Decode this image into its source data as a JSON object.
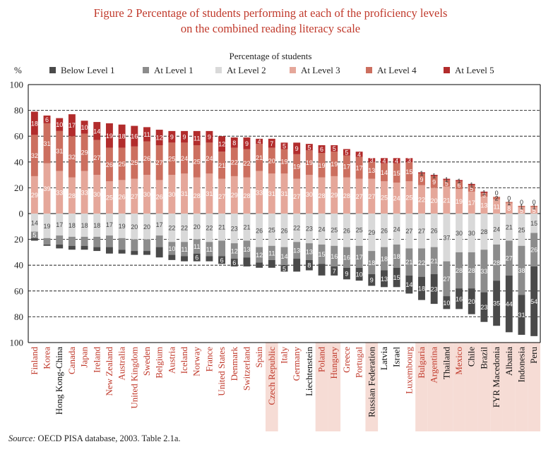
{
  "figure": {
    "title_line1": "Figure 2 Percentage of students performing at each of the proficiency levels",
    "title_line2": "on the combined reading literacy scale",
    "subtitle": "Percentage of students",
    "unit": "%",
    "source_label": "Source:",
    "source_text": "OECD PISA database, 2003. Table 2.1a."
  },
  "colors": {
    "Below Level 1": "#4a4a4a",
    "At Level 1": "#8c8c8c",
    "At Level 2": "#d9d9d9",
    "At Level 3": "#e5a79a",
    "At Level 4": "#cc6f5f",
    "At Level 5": "#b22c2c",
    "highlight_band": "#f6dcd5",
    "country_red": "#c0392b"
  },
  "chart_data": {
    "type": "bar",
    "stacked": "diverging",
    "ylim": [
      -100,
      100
    ],
    "yticks": [
      100,
      80,
      60,
      40,
      20,
      0,
      20,
      40,
      60,
      80,
      100
    ],
    "grid": true,
    "legend_position": "top",
    "categories": [
      "Finland",
      "Korea",
      "Hong Kong-China",
      "Canada",
      "Japan",
      "Ireland",
      "New Zealand",
      "Australia",
      "United Kingdom",
      "Sweden",
      "Belgium",
      "Austria",
      "Iceland",
      "Norway",
      "France",
      "United States",
      "Denmark",
      "Switzerland",
      "Spain",
      "Czech Republic",
      "Italy",
      "Germany",
      "Liechtenstein",
      "Poland",
      "Hungary",
      "Greece",
      "Portugal",
      "Russian Federation",
      "Latvia",
      "Israel",
      "Luxembourg",
      "Bulgaria",
      "Argentina",
      "Thailand",
      "Mexico",
      "Chile",
      "Brazil",
      "FYR Macedonia",
      "Albania",
      "Indonesia",
      "Peru"
    ],
    "category_color": [
      "red",
      "red",
      "black",
      "red",
      "red",
      "red",
      "red",
      "red",
      "red",
      "red",
      "red",
      "red",
      "red",
      "red",
      "red",
      "red",
      "red",
      "red",
      "red",
      "red",
      "red",
      "red",
      "black",
      "red",
      "red",
      "red",
      "red",
      "black",
      "black",
      "black",
      "red",
      "red",
      "red",
      "black",
      "red",
      "black",
      "black",
      "black",
      "black",
      "black",
      "black"
    ],
    "highlighted": [
      "Czech Republic",
      "Poland",
      "Hungary",
      "Russian Federation",
      "Bulgaria",
      "Argentina",
      "Thailand",
      "Mexico",
      "Chile",
      "Brazil",
      "FYR Macedonia",
      "Albania",
      "Indonesia",
      "Peru"
    ],
    "series": [
      {
        "name": "Below Level 1",
        "direction": "down",
        "values": [
          2,
          1,
          3,
          3,
          3,
          3,
          5,
          3,
          3,
          3,
          8,
          4,
          4,
          6,
          4,
          6,
          6,
          7,
          4,
          6,
          5,
          10,
          8,
          9,
          7,
          9,
          10,
          9,
          13,
          15,
          14,
          18,
          23,
          10,
          16,
          20,
          23,
          35,
          44,
          31,
          54
        ]
      },
      {
        "name": "At Level 1",
        "direction": "down",
        "values": [
          5,
          5,
          7,
          7,
          7,
          8,
          9,
          9,
          9,
          9,
          9,
          10,
          11,
          11,
          11,
          12,
          12,
          13,
          12,
          11,
          14,
          13,
          13,
          15,
          16,
          16,
          17,
          18,
          18,
          18,
          21,
          22,
          21,
          27,
          28,
          28,
          33,
          28,
          27,
          38,
          26
        ]
      },
      {
        "name": "At Level 2",
        "direction": "down",
        "values": [
          14,
          19,
          17,
          18,
          18,
          18,
          17,
          19,
          20,
          20,
          17,
          22,
          22,
          20,
          22,
          21,
          23,
          21,
          26,
          25,
          26,
          22,
          23,
          24,
          25,
          26,
          25,
          29,
          26,
          24,
          27,
          27,
          26,
          37,
          30,
          30,
          28,
          24,
          21,
          25,
          15
        ]
      },
      {
        "name": "At Level 3",
        "direction": "up",
        "values": [
          29,
          39,
          33,
          28,
          33,
          30,
          25,
          26,
          27,
          30,
          26,
          30,
          31,
          28,
          31,
          27,
          29,
          28,
          33,
          31,
          31,
          27,
          30,
          28,
          29,
          28,
          27,
          27,
          25,
          24,
          25,
          22,
          20,
          21,
          19,
          17,
          13,
          11,
          8,
          5,
          5
        ]
      },
      {
        "name": "At Level 4",
        "direction": "up",
        "values": [
          32,
          31,
          31,
          32,
          29,
          27,
          26,
          25,
          25,
          26,
          27,
          25,
          24,
          25,
          24,
          21,
          22,
          22,
          21,
          20,
          19,
          19,
          19,
          19,
          19,
          17,
          17,
          13,
          14,
          15,
          15,
          9,
          9,
          5,
          6,
          5,
          3,
          2,
          1,
          1,
          1
        ]
      },
      {
        "name": "At Level 5",
        "direction": "up",
        "values": [
          18,
          6,
          10,
          17,
          10,
          14,
          19,
          18,
          16,
          11,
          12,
          9,
          9,
          11,
          9,
          12,
          8,
          9,
          4,
          7,
          5,
          9,
          5,
          6,
          5,
          5,
          4,
          3,
          4,
          4,
          3,
          1,
          1,
          1,
          1,
          1,
          1,
          0,
          0,
          0,
          0
        ]
      }
    ],
    "data_labels": {
      "Below Level 1": [
        "",
        "",
        "",
        "",
        "",
        "",
        "",
        "",
        "",
        "",
        "",
        "",
        "",
        "6",
        "",
        "6",
        "6",
        "",
        "",
        "",
        "5",
        "",
        "8",
        "",
        "7",
        "9",
        "10",
        "9",
        "13",
        "15",
        "14",
        "18",
        "23",
        "10",
        "16",
        "20",
        "23",
        "35",
        "44",
        "31",
        "54"
      ],
      "At Level 1": [
        "5",
        "",
        "",
        "",
        "",
        "",
        "",
        "",
        "",
        "",
        "",
        "10",
        "11",
        "11",
        "11",
        "",
        "12",
        "13",
        "12",
        "11",
        "14",
        "13",
        "13",
        "15",
        "16",
        "16",
        "17",
        "18",
        "18",
        "18",
        "21",
        "22",
        "21",
        "27",
        "28",
        "28",
        "33",
        "28",
        "27",
        "38",
        "26"
      ],
      "At Level 2": [
        "14",
        "19",
        "17",
        "18",
        "18",
        "18",
        "17",
        "19",
        "20",
        "20",
        "17",
        "22",
        "22",
        "20",
        "22",
        "21",
        "23",
        "21",
        "26",
        "25",
        "26",
        "22",
        "23",
        "24",
        "25",
        "26",
        "25",
        "29",
        "26",
        "24",
        "27",
        "27",
        "26",
        "37",
        "30",
        "30",
        "28",
        "24",
        "21",
        "25",
        "15"
      ],
      "At Level 3": [
        "29",
        "39",
        "33",
        "28",
        "33",
        "30",
        "25",
        "26",
        "27",
        "30",
        "26",
        "30",
        "31",
        "28",
        "31",
        "27",
        "29",
        "28",
        "33",
        "31",
        "31",
        "27",
        "30",
        "28",
        "29",
        "28",
        "27",
        "27",
        "25",
        "24",
        "25",
        "22",
        "20",
        "21",
        "19",
        "17",
        "13",
        "11",
        "8",
        "5",
        "5"
      ],
      "At Level 4": [
        "32",
        "31",
        "31",
        "32",
        "29",
        "27",
        "26",
        "25",
        "25",
        "26",
        "27",
        "25",
        "24",
        "25",
        "24",
        "21",
        "22",
        "22",
        "21",
        "20",
        "19",
        "19",
        "19",
        "19",
        "19",
        "17",
        "17",
        "13",
        "14",
        "15",
        "15",
        "9",
        "9",
        "5",
        "6",
        "5",
        "3",
        "2",
        "1",
        "1",
        "1"
      ],
      "At Level 5": [
        "18",
        "6",
        "10",
        "17",
        "10",
        "14",
        "19",
        "18",
        "16",
        "11",
        "12",
        "9",
        "9",
        "11",
        "9",
        "12",
        "8",
        "9",
        "4",
        "7",
        "5",
        "9",
        "5",
        "6",
        "5",
        "5",
        "4",
        "3",
        "4",
        "4",
        "3",
        "1",
        "1",
        "1",
        "1",
        "1",
        "1",
        "0",
        "0",
        "0",
        "0"
      ]
    }
  }
}
